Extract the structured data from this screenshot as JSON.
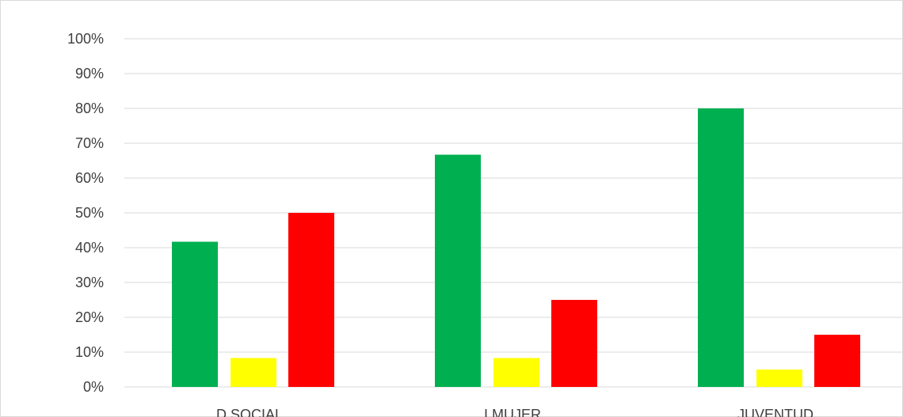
{
  "chart_data": {
    "type": "bar",
    "categories": [
      "D SOCIAL",
      "I MUJER",
      "JUVENTUD"
    ],
    "series": [
      {
        "color": "#00b050",
        "values": [
          0.417,
          0.667,
          0.8
        ]
      },
      {
        "color": "#ffff00",
        "values": [
          0.083,
          0.083,
          0.05
        ]
      },
      {
        "color": "#ff0000",
        "values": [
          0.5,
          0.25,
          0.15
        ]
      }
    ],
    "ylim": [
      0,
      1
    ],
    "yticks": [
      "0%",
      "10%",
      "20%",
      "30%",
      "40%",
      "50%",
      "60%",
      "70%",
      "80%",
      "90%",
      "100%"
    ],
    "grid": true,
    "legend": "none"
  }
}
